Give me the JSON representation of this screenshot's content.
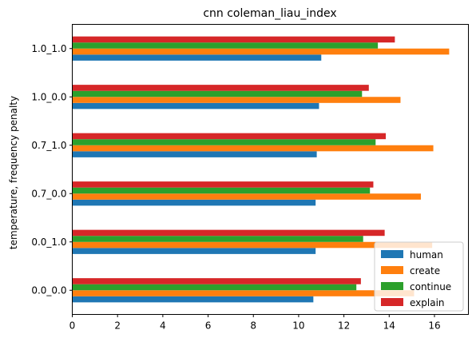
{
  "chart_data": {
    "type": "bar",
    "orientation": "horizontal",
    "title": "cnn coleman_liau_index",
    "xlabel": "",
    "ylabel": "temperature, frequency penalty",
    "categories": [
      "0.0_0.0",
      "0.0_1.0",
      "0.7_0.0",
      "0.7_1.0",
      "1.0_0.0",
      "1.0_1.0"
    ],
    "xlim": [
      0,
      17.5
    ],
    "xticks": [
      0,
      2,
      4,
      6,
      8,
      10,
      12,
      14,
      16
    ],
    "grid": false,
    "legend_position": "lower-right",
    "series": [
      {
        "name": "human",
        "color": "#1f77b4",
        "values": [
          10.65,
          10.75,
          10.75,
          10.8,
          10.9,
          11.0
        ]
      },
      {
        "name": "create",
        "color": "#ff7f0e",
        "values": [
          15.1,
          15.9,
          15.4,
          15.95,
          14.5,
          16.65
        ]
      },
      {
        "name": "continue",
        "color": "#2ca02c",
        "values": [
          12.55,
          12.85,
          13.15,
          13.4,
          12.8,
          13.5
        ]
      },
      {
        "name": "explain",
        "color": "#d62728",
        "values": [
          12.75,
          13.8,
          13.3,
          13.85,
          13.1,
          14.25
        ]
      }
    ]
  }
}
